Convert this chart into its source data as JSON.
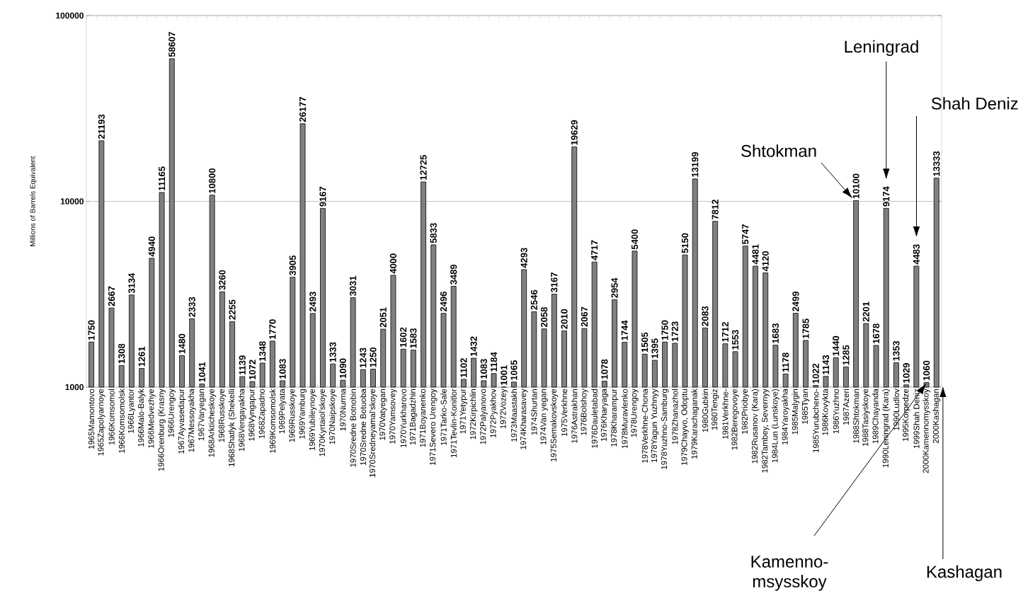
{
  "chart_data": {
    "type": "bar",
    "ylabel": "Millions of Barrels Equivalent",
    "categories": [
      "1965Mamontovo",
      "1965Zapolyarnoye",
      "1966Komsomol",
      "1966Komsomolsk",
      "1966Lyantor",
      "1966Malo-Balyk",
      "1966Medvezhye",
      "1966Orenburg (Krasny",
      "1966Urengoy",
      "1967Ayvasedapur",
      "1967Messoyakha",
      "1967Varyegan",
      "1968Arkticheskoye",
      "1968Russkoye",
      "1968Shatlyk (Shekelli",
      "1968Vengayakha",
      "1968Vyngapur",
      "1968Zapadno",
      "1969Komsomolsk",
      "1969Pelyata",
      "1969Russkoye",
      "1969Yamburg",
      "1969Yubileynoye",
      "1970Kyrtaiol'skoye",
      "1970Naipskoye",
      "1970Nurma",
      "1970Sredne Botnobin",
      "1970Sredne Botuoba",
      "1970Sredneyamal'skoye",
      "1970Vatyegan",
      "1970Yamsovey",
      "1970Yurkharovo",
      "1971Bagadzhin",
      "1971Boyanenko",
      "1971Severo Urengoy",
      "1971Tarko-Sale",
      "1971Tevlin-Konitlor",
      "1971Yetypur",
      "1972Kirpichlin",
      "1972Palyanovo",
      "1972Pyakhov",
      "1972Vozey",
      "1973Maastakh",
      "1974Kharasavey",
      "1974Shurtan",
      "1974Van yegan",
      "1975Semakovskoye",
      "1975Verkhne",
      "1976Astrakhan",
      "1976Bolshoy",
      "1976Dauletabad",
      "1976Kharyaga",
      "1978Kharampur",
      "1978Muravlenko",
      "1978Urengoy",
      "1978Verkhne-Chona",
      "1978Yagun Yuzhnyy",
      "1978Yuzhno-Samburg",
      "1978Zhanazhol",
      "1979Chayvo, Odoptu",
      "1979Karachaganak",
      "1980Gubkin",
      "1980Tengiz",
      "1981Verkhne-",
      "1982Beregovoye",
      "1982Priobye",
      "1982Rusanov (Kara)",
      "1982Tambey, Severnyy",
      "1984Lun (Lunskoye)",
      "1984Yaroyakha",
      "1985Malygin",
      "1985Tyan",
      "1985Yurubcheno-",
      "1986Kovykta",
      "1986Yuzhno",
      "1987Azeri",
      "1988Shtokman",
      "1988Tasiyskoye",
      "1989Chayanda",
      "1990Leningrad (Kara)",
      "1990Ludlov",
      "1995Korpedze",
      "1999Shah Deniz",
      "2000Kamennomysskoy",
      "2000Kashagan"
    ],
    "values": [
      1750,
      21193,
      2667,
      1308,
      3134,
      1261,
      4940,
      11165,
      58607,
      1480,
      2333,
      1041,
      10800,
      3260,
      2255,
      1139,
      1072,
      1348,
      1770,
      1083,
      3905,
      26177,
      2493,
      9167,
      1333,
      1090,
      3031,
      1243,
      1250,
      2051,
      4000,
      1602,
      1583,
      12725,
      5833,
      2496,
      3489,
      1102,
      1432,
      1083,
      1184,
      1001,
      1065,
      4293,
      2546,
      2058,
      3167,
      2010,
      19629,
      2067,
      4717,
      1078,
      2954,
      1744,
      5400,
      1505,
      1395,
      1750,
      1723,
      5150,
      13199,
      2083,
      7812,
      1712,
      1553,
      5747,
      4481,
      4120,
      1683,
      1178,
      2499,
      1785,
      1022,
      1143,
      1440,
      1285,
      10100,
      2201,
      1678,
      9174,
      1353,
      1029,
      4483,
      1060,
      13333
    ],
    "color": "#808080",
    "log": true,
    "ylim": [
      1000,
      100000
    ],
    "yticks": [
      1000,
      10000,
      100000
    ],
    "grid": "y",
    "data_labels": true,
    "annotations": [
      "Shtokman",
      "Leningrad",
      "Shah Deniz",
      "Kamenno-msysskoy",
      "Kashagan"
    ]
  }
}
